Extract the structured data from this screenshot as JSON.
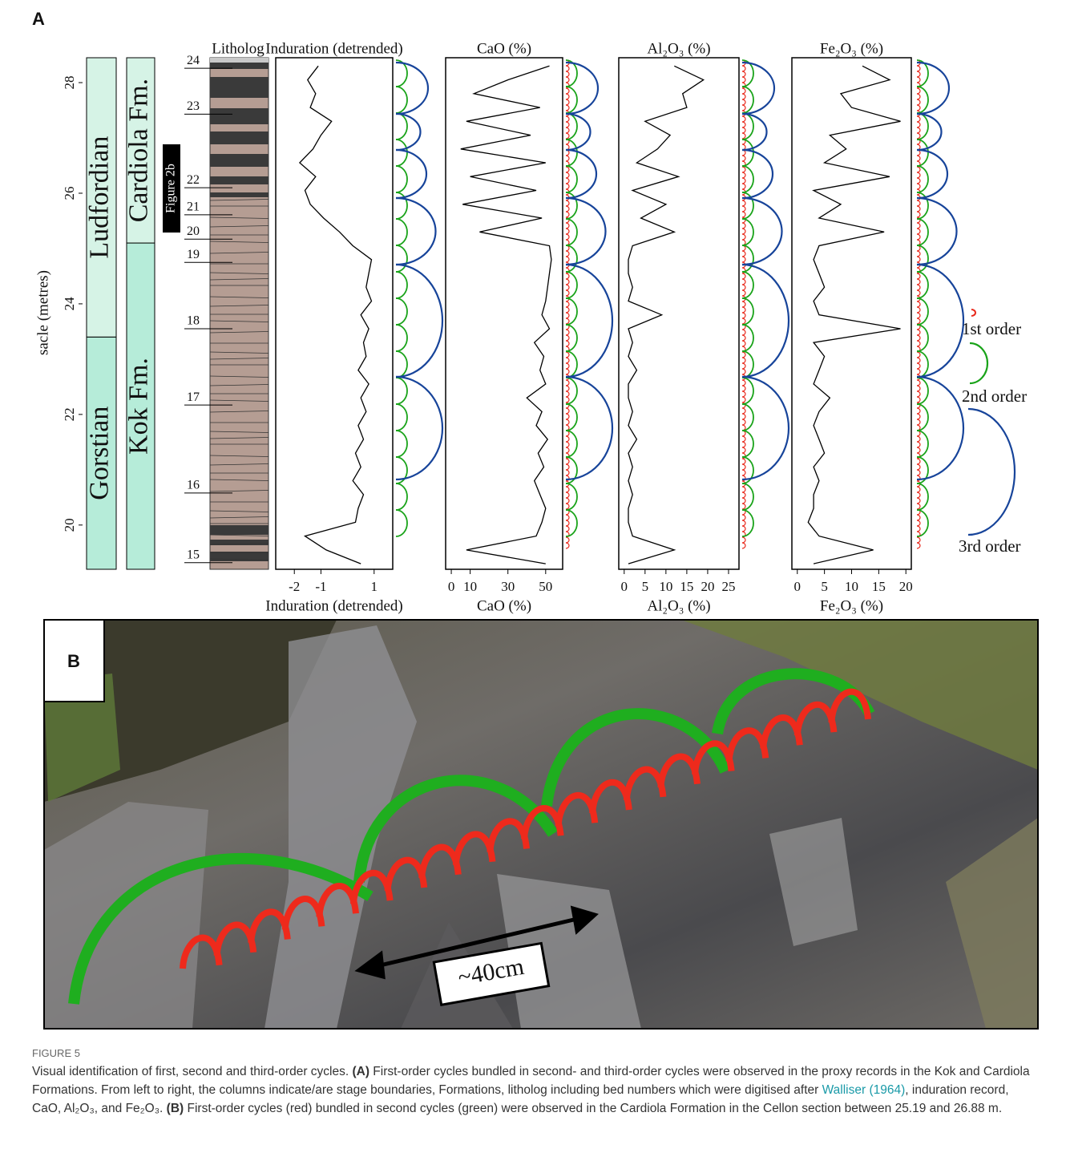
{
  "panel_a": {
    "label": "A",
    "depth_axis": {
      "label": "sacle (metres)",
      "ylim": [
        19.2,
        28.45
      ],
      "yticks": [
        20,
        22,
        24,
        26,
        28
      ]
    },
    "stages": {
      "names": [
        "Gorstian",
        "Ludfordian"
      ],
      "boundary": 23.4
    },
    "formations": {
      "names": [
        "Kok Fm.",
        "Cardiola Fm."
      ],
      "boundary": 25.1
    },
    "figure_ref": "Figure 2b",
    "litholog": {
      "title": "Litholog",
      "beds": [
        {
          "label": "24",
          "depth": 28.26
        },
        {
          "label": "23",
          "depth": 27.43
        },
        {
          "label": "22",
          "depth": 26.1
        },
        {
          "label": "21",
          "depth": 25.61
        },
        {
          "label": "20",
          "depth": 25.17
        },
        {
          "label": "19",
          "depth": 24.75
        },
        {
          "label": "18",
          "depth": 23.55
        },
        {
          "label": "17",
          "depth": 22.17
        },
        {
          "label": "16",
          "depth": 20.58
        },
        {
          "label": "15",
          "depth": 19.32
        }
      ]
    },
    "depths": [
      19.3,
      19.55,
      19.8,
      20.05,
      20.3,
      20.55,
      20.8,
      21.05,
      21.3,
      21.55,
      21.8,
      22.05,
      22.3,
      22.55,
      22.8,
      23.05,
      23.3,
      23.55,
      23.8,
      24.05,
      24.3,
      24.55,
      24.8,
      25.05,
      25.3,
      25.55,
      25.8,
      26.05,
      26.3,
      26.55,
      26.8,
      27.05,
      27.3,
      27.55,
      27.8,
      28.05,
      28.3
    ],
    "proxies": [
      {
        "title": "Induration (detrended)",
        "xlabel": "Induration (detrended)",
        "xlim": [
          -2.7,
          1.7
        ],
        "xticks": [
          -2,
          -1,
          1
        ],
        "values": [
          0.5,
          -0.8,
          -1.6,
          0.3,
          0.4,
          0.6,
          0.2,
          0.5,
          0.3,
          0.6,
          0.4,
          0.7,
          0.5,
          0.8,
          0.4,
          0.7,
          0.6,
          0.8,
          0.5,
          0.9,
          0.7,
          0.8,
          0.9,
          0.2,
          -0.3,
          -0.9,
          -1.4,
          -1.6,
          -1.2,
          -1.8,
          -1.3,
          -1.0,
          -0.6,
          -1.4,
          -1.2,
          -1.5,
          -1.1
        ]
      },
      {
        "title": "CaO (%)",
        "xlabel": "CaO (%)",
        "xlim": [
          -3,
          59
        ],
        "xticks": [
          0,
          10,
          30,
          50
        ],
        "values": [
          50,
          8,
          45,
          48,
          50,
          47,
          44,
          49,
          46,
          51,
          45,
          48,
          40,
          50,
          47,
          49,
          44,
          52,
          48,
          50,
          51,
          52,
          53,
          52,
          15,
          48,
          6,
          45,
          10,
          50,
          5,
          42,
          8,
          47,
          12,
          30,
          52
        ]
      },
      {
        "title": "Al₂O₃ (%)",
        "xlabel": "Al₂O₃ (%)",
        "xlim": [
          -1.3,
          27.5
        ],
        "xticks": [
          0,
          5,
          10,
          15,
          20,
          25
        ],
        "values": [
          1,
          12,
          2,
          1,
          1,
          2,
          1,
          2,
          1,
          3,
          1,
          2,
          1,
          1,
          3,
          1,
          2,
          1,
          9,
          1,
          2,
          1,
          1,
          2,
          12,
          4,
          10,
          2,
          13,
          3,
          8,
          11,
          5,
          15,
          14,
          19,
          12
        ]
      },
      {
        "title": "Fe₂O₃ (%)",
        "xlabel": "Fe₂O₃ (%)",
        "xlim": [
          -1,
          21
        ],
        "xticks": [
          0,
          5,
          10,
          15,
          20
        ],
        "values": [
          3,
          14,
          4,
          2,
          3,
          3,
          4,
          3,
          5,
          4,
          3,
          4,
          6,
          3,
          4,
          5,
          3,
          19,
          4,
          3,
          5,
          4,
          3,
          4,
          16,
          4,
          8,
          3,
          17,
          5,
          9,
          6,
          19,
          10,
          8,
          17,
          12
        ]
      }
    ],
    "legend": [
      "1st order",
      "2nd order",
      "3rd order"
    ]
  },
  "panel_b": {
    "label": "B",
    "scale_label": "~40cm"
  },
  "caption": {
    "label": "FIGURE 5",
    "parts": [
      "Visual identification of first, second and third-order cycles. ",
      "(A)",
      " First-order cycles bundled in second- and third-order cycles were observed in the proxy records in the Kok and Cardiola Formations. From left to right, the columns indicate/are stage boundaries, Formations, litholog including bed numbers which were digitised after ",
      "Walliser (1964)",
      ", induration record, CaO, Al₂O₃, and Fe₂O₃. ",
      "(B)",
      " First-order cycles (red) bundled in second cycles (green) were observed in the Cardiola Formation in the Cellon section between 25.19 and 26.88 m."
    ]
  }
}
